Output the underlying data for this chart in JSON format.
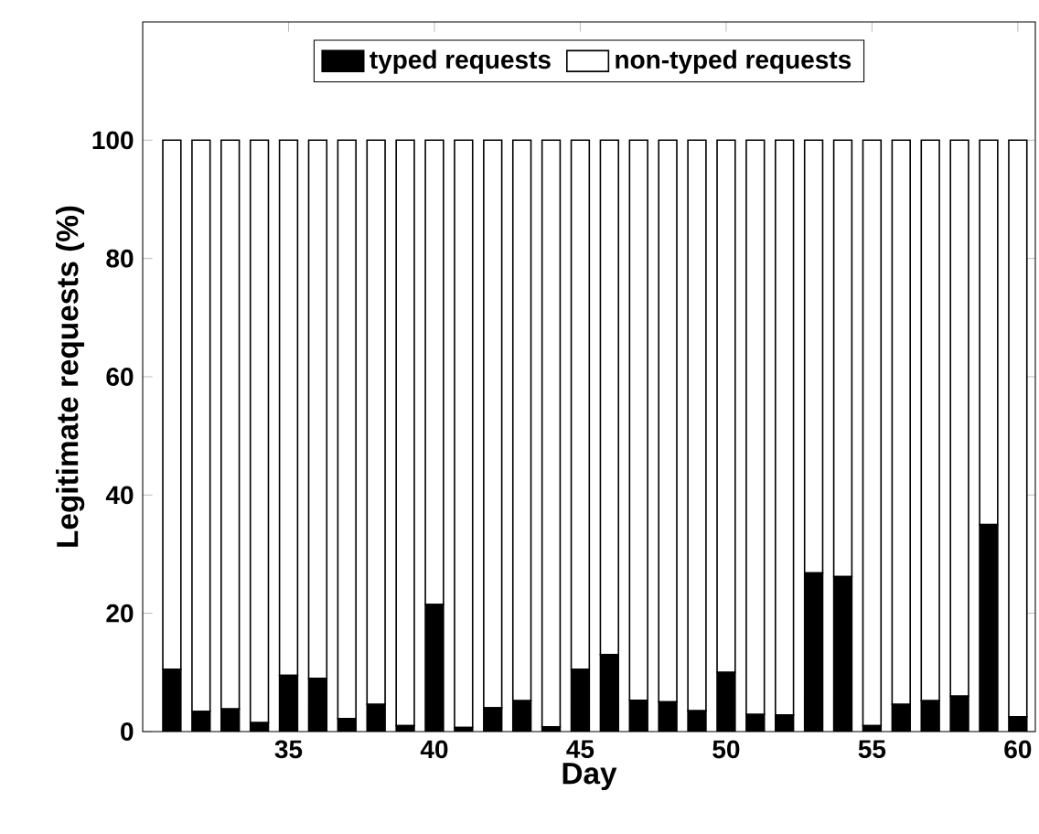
{
  "chart_data": {
    "type": "bar",
    "stacked": true,
    "xlabel": "Day",
    "ylabel": "Legitimate requests (%)",
    "x": [
      31,
      32,
      33,
      34,
      35,
      36,
      37,
      38,
      39,
      40,
      41,
      42,
      43,
      44,
      45,
      46,
      47,
      48,
      49,
      50,
      51,
      52,
      53,
      54,
      55,
      56,
      57,
      58,
      59,
      60
    ],
    "series": [
      {
        "name": "typed requests",
        "color": "#000000",
        "values": [
          10.5,
          3.4,
          3.8,
          1.5,
          9.5,
          9,
          2.2,
          4.6,
          1,
          21.5,
          0.7,
          4,
          5.2,
          0.8,
          10.5,
          13,
          5.3,
          5,
          3.5,
          10,
          2.9,
          2.8,
          26.8,
          26.2,
          1,
          4.6,
          5.2,
          6,
          35,
          2.5
        ]
      },
      {
        "name": "non-typed requests",
        "color": "#ffffff",
        "values": [
          89.5,
          96.6,
          96.2,
          98.5,
          90.5,
          91,
          97.8,
          95.4,
          99,
          78.5,
          99.3,
          96,
          94.8,
          99.2,
          89.5,
          87,
          94.7,
          95,
          96.5,
          90,
          97.1,
          97.2,
          73.2,
          73.8,
          99,
          95.4,
          94.8,
          94,
          65,
          97.5
        ]
      }
    ],
    "xlim": [
      30,
      60.6
    ],
    "ylim": [
      0,
      120
    ],
    "xticks": [
      35,
      40,
      45,
      50,
      55,
      60
    ],
    "yticks": [
      0,
      20,
      40,
      60,
      80,
      100
    ],
    "grid": false,
    "legend": "top"
  }
}
